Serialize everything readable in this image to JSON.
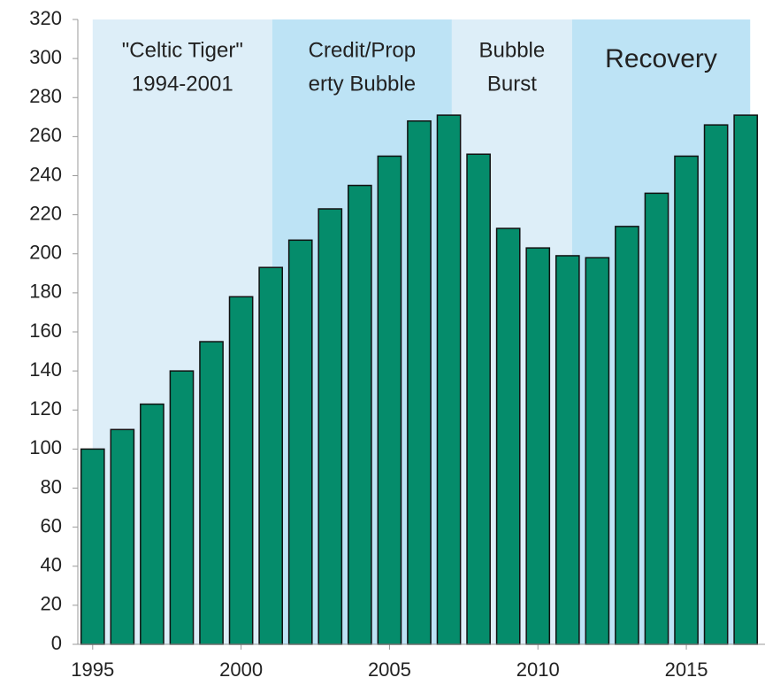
{
  "chart_data": {
    "type": "bar",
    "x": [
      1995,
      1996,
      1997,
      1998,
      1999,
      2000,
      2001,
      2002,
      2003,
      2004,
      2005,
      2006,
      2007,
      2008,
      2009,
      2010,
      2011,
      2012,
      2013,
      2014,
      2015,
      2016,
      2017
    ],
    "values": [
      100,
      110,
      123,
      140,
      155,
      178,
      193,
      207,
      223,
      235,
      250,
      268,
      271,
      251,
      213,
      203,
      199,
      198,
      214,
      231,
      250,
      266,
      271
    ],
    "color": "#058c6b",
    "xlim": [
      1994.5,
      2017.65
    ],
    "xticks": [
      1995,
      2000,
      2005,
      2010,
      2015
    ],
    "ylim": [
      0,
      320
    ],
    "yticks": [
      0,
      20,
      40,
      60,
      80,
      100,
      120,
      140,
      160,
      180,
      200,
      220,
      240,
      260,
      280,
      300,
      320
    ],
    "bands": [
      {
        "start": 1995,
        "end": 2001.05,
        "color": "#ddeef8",
        "lines": [
          "\"Celtic Tiger\"",
          "1994-2001"
        ]
      },
      {
        "start": 2001.05,
        "end": 2007.1,
        "color": "#bde3f5",
        "lines": [
          "Credit/Prop",
          "erty Bubble"
        ]
      },
      {
        "start": 2007.1,
        "end": 2011.15,
        "color": "#ddeef8",
        "lines": [
          "Bubble",
          "Burst"
        ]
      },
      {
        "start": 2011.15,
        "end": 2017.15,
        "color": "#bde3f5",
        "lines": [
          "Recovery"
        ]
      }
    ]
  }
}
